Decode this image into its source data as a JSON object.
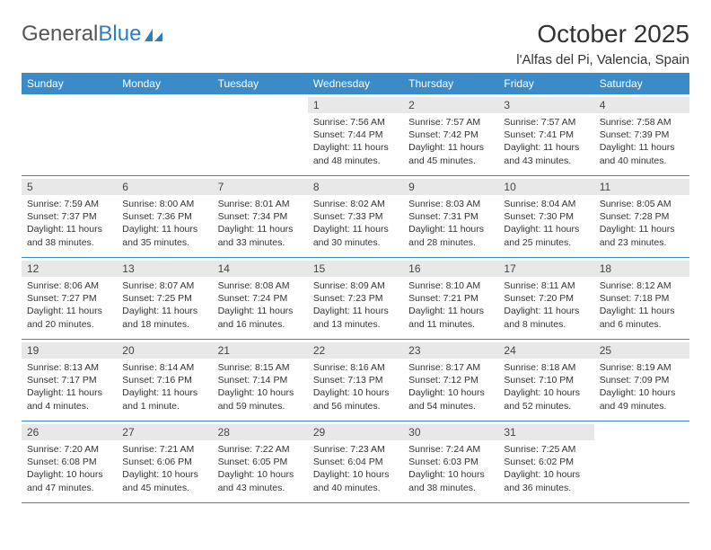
{
  "logo": {
    "text1": "General",
    "text2": "Blue"
  },
  "title": "October 2025",
  "location": "l'Alfas del Pi, Valencia, Spain",
  "day_names": [
    "Sunday",
    "Monday",
    "Tuesday",
    "Wednesday",
    "Thursday",
    "Friday",
    "Saturday"
  ],
  "header_bg": "#3b8bc8",
  "header_fg": "#ffffff",
  "daynum_bg": "#e8e8e8",
  "border_color": "#3b8bc8",
  "weeks": [
    [
      {
        "n": "",
        "sunrise": "",
        "sunset": "",
        "daylight1": "",
        "daylight2": ""
      },
      {
        "n": "",
        "sunrise": "",
        "sunset": "",
        "daylight1": "",
        "daylight2": ""
      },
      {
        "n": "",
        "sunrise": "",
        "sunset": "",
        "daylight1": "",
        "daylight2": ""
      },
      {
        "n": "1",
        "sunrise": "Sunrise: 7:56 AM",
        "sunset": "Sunset: 7:44 PM",
        "daylight1": "Daylight: 11 hours",
        "daylight2": "and 48 minutes."
      },
      {
        "n": "2",
        "sunrise": "Sunrise: 7:57 AM",
        "sunset": "Sunset: 7:42 PM",
        "daylight1": "Daylight: 11 hours",
        "daylight2": "and 45 minutes."
      },
      {
        "n": "3",
        "sunrise": "Sunrise: 7:57 AM",
        "sunset": "Sunset: 7:41 PM",
        "daylight1": "Daylight: 11 hours",
        "daylight2": "and 43 minutes."
      },
      {
        "n": "4",
        "sunrise": "Sunrise: 7:58 AM",
        "sunset": "Sunset: 7:39 PM",
        "daylight1": "Daylight: 11 hours",
        "daylight2": "and 40 minutes."
      }
    ],
    [
      {
        "n": "5",
        "sunrise": "Sunrise: 7:59 AM",
        "sunset": "Sunset: 7:37 PM",
        "daylight1": "Daylight: 11 hours",
        "daylight2": "and 38 minutes."
      },
      {
        "n": "6",
        "sunrise": "Sunrise: 8:00 AM",
        "sunset": "Sunset: 7:36 PM",
        "daylight1": "Daylight: 11 hours",
        "daylight2": "and 35 minutes."
      },
      {
        "n": "7",
        "sunrise": "Sunrise: 8:01 AM",
        "sunset": "Sunset: 7:34 PM",
        "daylight1": "Daylight: 11 hours",
        "daylight2": "and 33 minutes."
      },
      {
        "n": "8",
        "sunrise": "Sunrise: 8:02 AM",
        "sunset": "Sunset: 7:33 PM",
        "daylight1": "Daylight: 11 hours",
        "daylight2": "and 30 minutes."
      },
      {
        "n": "9",
        "sunrise": "Sunrise: 8:03 AM",
        "sunset": "Sunset: 7:31 PM",
        "daylight1": "Daylight: 11 hours",
        "daylight2": "and 28 minutes."
      },
      {
        "n": "10",
        "sunrise": "Sunrise: 8:04 AM",
        "sunset": "Sunset: 7:30 PM",
        "daylight1": "Daylight: 11 hours",
        "daylight2": "and 25 minutes."
      },
      {
        "n": "11",
        "sunrise": "Sunrise: 8:05 AM",
        "sunset": "Sunset: 7:28 PM",
        "daylight1": "Daylight: 11 hours",
        "daylight2": "and 23 minutes."
      }
    ],
    [
      {
        "n": "12",
        "sunrise": "Sunrise: 8:06 AM",
        "sunset": "Sunset: 7:27 PM",
        "daylight1": "Daylight: 11 hours",
        "daylight2": "and 20 minutes."
      },
      {
        "n": "13",
        "sunrise": "Sunrise: 8:07 AM",
        "sunset": "Sunset: 7:25 PM",
        "daylight1": "Daylight: 11 hours",
        "daylight2": "and 18 minutes."
      },
      {
        "n": "14",
        "sunrise": "Sunrise: 8:08 AM",
        "sunset": "Sunset: 7:24 PM",
        "daylight1": "Daylight: 11 hours",
        "daylight2": "and 16 minutes."
      },
      {
        "n": "15",
        "sunrise": "Sunrise: 8:09 AM",
        "sunset": "Sunset: 7:23 PM",
        "daylight1": "Daylight: 11 hours",
        "daylight2": "and 13 minutes."
      },
      {
        "n": "16",
        "sunrise": "Sunrise: 8:10 AM",
        "sunset": "Sunset: 7:21 PM",
        "daylight1": "Daylight: 11 hours",
        "daylight2": "and 11 minutes."
      },
      {
        "n": "17",
        "sunrise": "Sunrise: 8:11 AM",
        "sunset": "Sunset: 7:20 PM",
        "daylight1": "Daylight: 11 hours",
        "daylight2": "and 8 minutes."
      },
      {
        "n": "18",
        "sunrise": "Sunrise: 8:12 AM",
        "sunset": "Sunset: 7:18 PM",
        "daylight1": "Daylight: 11 hours",
        "daylight2": "and 6 minutes."
      }
    ],
    [
      {
        "n": "19",
        "sunrise": "Sunrise: 8:13 AM",
        "sunset": "Sunset: 7:17 PM",
        "daylight1": "Daylight: 11 hours",
        "daylight2": "and 4 minutes."
      },
      {
        "n": "20",
        "sunrise": "Sunrise: 8:14 AM",
        "sunset": "Sunset: 7:16 PM",
        "daylight1": "Daylight: 11 hours",
        "daylight2": "and 1 minute."
      },
      {
        "n": "21",
        "sunrise": "Sunrise: 8:15 AM",
        "sunset": "Sunset: 7:14 PM",
        "daylight1": "Daylight: 10 hours",
        "daylight2": "and 59 minutes."
      },
      {
        "n": "22",
        "sunrise": "Sunrise: 8:16 AM",
        "sunset": "Sunset: 7:13 PM",
        "daylight1": "Daylight: 10 hours",
        "daylight2": "and 56 minutes."
      },
      {
        "n": "23",
        "sunrise": "Sunrise: 8:17 AM",
        "sunset": "Sunset: 7:12 PM",
        "daylight1": "Daylight: 10 hours",
        "daylight2": "and 54 minutes."
      },
      {
        "n": "24",
        "sunrise": "Sunrise: 8:18 AM",
        "sunset": "Sunset: 7:10 PM",
        "daylight1": "Daylight: 10 hours",
        "daylight2": "and 52 minutes."
      },
      {
        "n": "25",
        "sunrise": "Sunrise: 8:19 AM",
        "sunset": "Sunset: 7:09 PM",
        "daylight1": "Daylight: 10 hours",
        "daylight2": "and 49 minutes."
      }
    ],
    [
      {
        "n": "26",
        "sunrise": "Sunrise: 7:20 AM",
        "sunset": "Sunset: 6:08 PM",
        "daylight1": "Daylight: 10 hours",
        "daylight2": "and 47 minutes."
      },
      {
        "n": "27",
        "sunrise": "Sunrise: 7:21 AM",
        "sunset": "Sunset: 6:06 PM",
        "daylight1": "Daylight: 10 hours",
        "daylight2": "and 45 minutes."
      },
      {
        "n": "28",
        "sunrise": "Sunrise: 7:22 AM",
        "sunset": "Sunset: 6:05 PM",
        "daylight1": "Daylight: 10 hours",
        "daylight2": "and 43 minutes."
      },
      {
        "n": "29",
        "sunrise": "Sunrise: 7:23 AM",
        "sunset": "Sunset: 6:04 PM",
        "daylight1": "Daylight: 10 hours",
        "daylight2": "and 40 minutes."
      },
      {
        "n": "30",
        "sunrise": "Sunrise: 7:24 AM",
        "sunset": "Sunset: 6:03 PM",
        "daylight1": "Daylight: 10 hours",
        "daylight2": "and 38 minutes."
      },
      {
        "n": "31",
        "sunrise": "Sunrise: 7:25 AM",
        "sunset": "Sunset: 6:02 PM",
        "daylight1": "Daylight: 10 hours",
        "daylight2": "and 36 minutes."
      },
      {
        "n": "",
        "sunrise": "",
        "sunset": "",
        "daylight1": "",
        "daylight2": ""
      }
    ]
  ]
}
